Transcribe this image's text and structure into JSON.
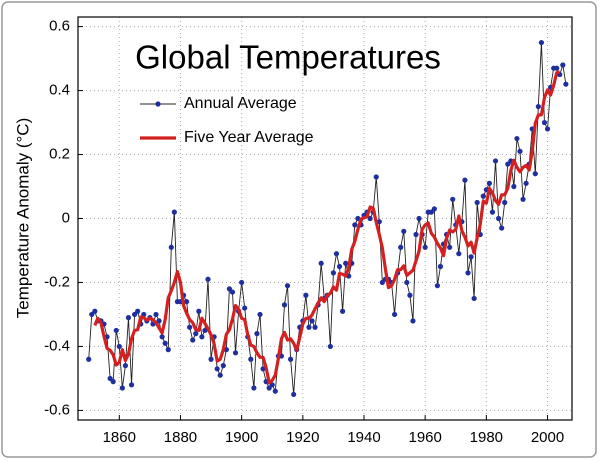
{
  "chart_data": {
    "type": "line",
    "title": "Global Temperatures",
    "ylabel": "Temperature Anomaly (°C)",
    "x": [
      1850,
      1851,
      1852,
      1853,
      1854,
      1855,
      1856,
      1857,
      1858,
      1859,
      1860,
      1861,
      1862,
      1863,
      1864,
      1865,
      1866,
      1867,
      1868,
      1869,
      1870,
      1871,
      1872,
      1873,
      1874,
      1875,
      1876,
      1877,
      1878,
      1879,
      1880,
      1881,
      1882,
      1883,
      1884,
      1885,
      1886,
      1887,
      1888,
      1889,
      1890,
      1891,
      1892,
      1893,
      1894,
      1895,
      1896,
      1897,
      1898,
      1899,
      1900,
      1901,
      1902,
      1903,
      1904,
      1905,
      1906,
      1907,
      1908,
      1909,
      1910,
      1911,
      1912,
      1913,
      1914,
      1915,
      1916,
      1917,
      1918,
      1919,
      1920,
      1921,
      1922,
      1923,
      1924,
      1925,
      1926,
      1927,
      1928,
      1929,
      1930,
      1931,
      1932,
      1933,
      1934,
      1935,
      1936,
      1937,
      1938,
      1939,
      1940,
      1941,
      1942,
      1943,
      1944,
      1945,
      1946,
      1947,
      1948,
      1949,
      1950,
      1951,
      1952,
      1953,
      1954,
      1955,
      1956,
      1957,
      1958,
      1959,
      1960,
      1961,
      1962,
      1963,
      1964,
      1965,
      1966,
      1967,
      1968,
      1969,
      1970,
      1971,
      1972,
      1973,
      1974,
      1975,
      1976,
      1977,
      1978,
      1979,
      1980,
      1981,
      1982,
      1983,
      1984,
      1985,
      1986,
      1987,
      1988,
      1989,
      1990,
      1991,
      1992,
      1993,
      1994,
      1995,
      1996,
      1997,
      1998,
      1999,
      2000,
      2001,
      2002,
      2003,
      2004,
      2005,
      2006
    ],
    "series": [
      {
        "name": "Annual Average",
        "color": "#1f2f9e",
        "markers": true,
        "values": [
          -0.44,
          -0.3,
          -0.29,
          -0.32,
          -0.32,
          -0.33,
          -0.37,
          -0.5,
          -0.51,
          -0.35,
          -0.4,
          -0.53,
          -0.46,
          -0.31,
          -0.52,
          -0.3,
          -0.29,
          -0.33,
          -0.3,
          -0.32,
          -0.31,
          -0.33,
          -0.3,
          -0.32,
          -0.37,
          -0.39,
          -0.41,
          -0.09,
          0.02,
          -0.26,
          -0.26,
          -0.24,
          -0.26,
          -0.34,
          -0.38,
          -0.36,
          -0.29,
          -0.37,
          -0.35,
          -0.19,
          -0.44,
          -0.37,
          -0.47,
          -0.49,
          -0.46,
          -0.41,
          -0.22,
          -0.23,
          -0.42,
          -0.29,
          -0.2,
          -0.28,
          -0.37,
          -0.44,
          -0.53,
          -0.36,
          -0.3,
          -0.47,
          -0.51,
          -0.53,
          -0.52,
          -0.54,
          -0.43,
          -0.43,
          -0.27,
          -0.21,
          -0.44,
          -0.55,
          -0.41,
          -0.34,
          -0.32,
          -0.24,
          -0.34,
          -0.32,
          -0.34,
          -0.27,
          -0.14,
          -0.25,
          -0.24,
          -0.4,
          -0.17,
          -0.11,
          -0.15,
          -0.29,
          -0.14,
          -0.18,
          -0.14,
          -0.02,
          0.0,
          -0.02,
          0.01,
          0.02,
          0.0,
          0.02,
          0.13,
          -0.01,
          -0.2,
          -0.19,
          -0.19,
          -0.2,
          -0.3,
          -0.17,
          -0.09,
          -0.04,
          -0.2,
          -0.24,
          -0.32,
          -0.05,
          0.0,
          -0.05,
          -0.09,
          0.02,
          0.02,
          0.03,
          -0.21,
          -0.15,
          -0.08,
          -0.05,
          -0.09,
          0.06,
          -0.02,
          -0.11,
          -0.01,
          0.12,
          -0.17,
          -0.12,
          -0.25,
          0.05,
          -0.05,
          0.07,
          0.09,
          0.11,
          0.02,
          0.18,
          0.0,
          -0.03,
          0.05,
          0.17,
          0.18,
          0.1,
          0.25,
          0.21,
          0.06,
          0.11,
          0.17,
          0.28,
          0.14,
          0.35,
          0.55,
          0.3,
          0.28,
          0.41,
          0.47,
          0.47,
          0.45,
          0.48,
          0.42
        ]
      },
      {
        "name": "Five Year Average",
        "color": "#d42020",
        "markers": false,
        "values": [
          null,
          null,
          -0.334,
          -0.312,
          -0.326,
          -0.368,
          -0.406,
          -0.412,
          -0.426,
          -0.458,
          -0.45,
          -0.41,
          -0.444,
          -0.424,
          -0.376,
          -0.35,
          -0.348,
          -0.308,
          -0.31,
          -0.318,
          -0.312,
          -0.316,
          -0.326,
          -0.342,
          -0.358,
          -0.316,
          -0.248,
          -0.226,
          -0.2,
          -0.166,
          -0.2,
          -0.272,
          -0.296,
          -0.316,
          -0.326,
          -0.348,
          -0.35,
          -0.312,
          -0.328,
          -0.344,
          -0.364,
          -0.392,
          -0.446,
          -0.44,
          -0.41,
          -0.362,
          -0.348,
          -0.314,
          -0.272,
          -0.284,
          -0.312,
          -0.316,
          -0.364,
          -0.396,
          -0.4,
          -0.42,
          -0.434,
          -0.434,
          -0.466,
          -0.514,
          -0.506,
          -0.49,
          -0.438,
          -0.376,
          -0.356,
          -0.38,
          -0.376,
          -0.39,
          -0.412,
          -0.372,
          -0.33,
          -0.312,
          -0.312,
          -0.302,
          -0.282,
          -0.264,
          -0.248,
          -0.26,
          -0.24,
          -0.234,
          -0.214,
          -0.224,
          -0.172,
          -0.174,
          -0.18,
          -0.154,
          -0.096,
          -0.072,
          -0.034,
          -0.002,
          0.002,
          0.006,
          0.036,
          0.032,
          -0.012,
          -0.05,
          -0.092,
          -0.158,
          -0.216,
          -0.21,
          -0.19,
          -0.16,
          -0.16,
          -0.148,
          -0.178,
          -0.17,
          -0.162,
          -0.132,
          -0.102,
          -0.034,
          -0.02,
          -0.014,
          -0.046,
          -0.058,
          -0.078,
          -0.092,
          -0.116,
          -0.062,
          -0.036,
          -0.042,
          -0.034,
          0.008,
          -0.038,
          -0.058,
          -0.086,
          -0.074,
          -0.108,
          -0.06,
          -0.018,
          0.054,
          0.048,
          0.094,
          0.08,
          0.056,
          0.044,
          0.074,
          0.074,
          0.094,
          0.15,
          0.182,
          0.16,
          0.146,
          0.16,
          0.166,
          0.152,
          0.21,
          0.298,
          0.324,
          0.324,
          0.378,
          0.402,
          0.386,
          0.416,
          0.456,
          0.458,
          null,
          null
        ]
      }
    ],
    "xlim": [
      1846.5,
      2008
    ],
    "ylim": [
      -0.63,
      0.63
    ],
    "xticks": [
      1860,
      1880,
      1900,
      1920,
      1940,
      1960,
      1980,
      2000
    ],
    "yticks": [
      -0.6,
      -0.4,
      -0.2,
      0,
      0.2,
      0.4,
      0.6
    ],
    "grid": true,
    "legend": "upper left"
  }
}
